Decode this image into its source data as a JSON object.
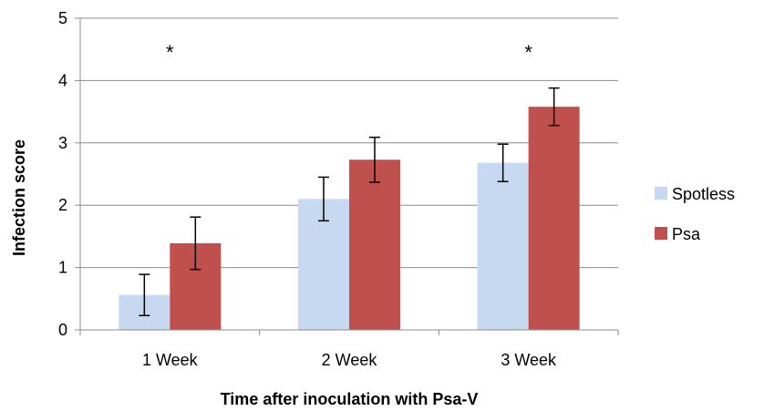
{
  "chart_data": {
    "type": "bar",
    "title": "",
    "xlabel": "Time after inoculation with Psa-V",
    "ylabel": "Infection score",
    "ylim": [
      0,
      5
    ],
    "yticks": [
      "0",
      "1",
      "2",
      "3",
      "4",
      "5"
    ],
    "categories": [
      "1 Week",
      "2 Week",
      "3 Week"
    ],
    "series": [
      {
        "name": "Spotless",
        "color": "#c6d9f1",
        "values": [
          0.56,
          2.1,
          2.68
        ],
        "errors": [
          0.33,
          0.35,
          0.3
        ]
      },
      {
        "name": "Psa",
        "color": "#c0504d",
        "values": [
          1.39,
          2.73,
          3.58
        ],
        "errors": [
          0.42,
          0.36,
          0.3
        ]
      }
    ],
    "annotations": [
      {
        "text": "*",
        "category": "1 Week",
        "y": 4.55
      },
      {
        "text": "*",
        "category": "3 Week",
        "y": 4.55
      }
    ],
    "grid": true,
    "legend": "right"
  }
}
